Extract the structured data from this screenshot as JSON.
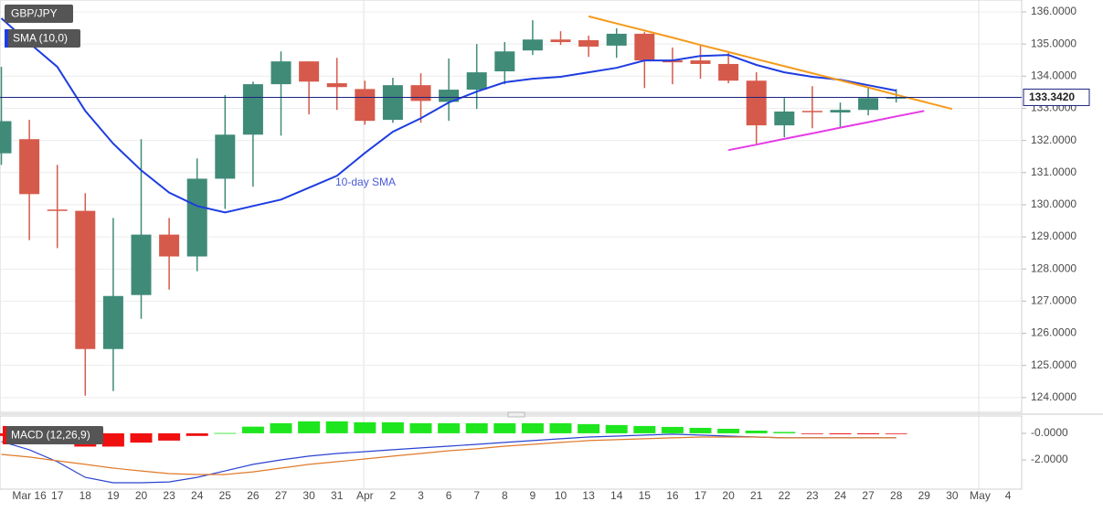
{
  "chart_data": [
    {
      "type": "candlestick",
      "title": "GBP/JPY",
      "categories": [
        null,
        "Mar 16",
        "17",
        "18",
        "19",
        "20",
        "23",
        "24",
        "25",
        "26",
        "27",
        "30",
        "31",
        "Apr",
        "2",
        "3",
        "6",
        "7",
        "8",
        "9",
        "10",
        "13",
        "14",
        "15",
        "16",
        "17",
        "20",
        "21",
        "22",
        "23",
        "24",
        "27",
        "28",
        "29",
        "30",
        "May",
        "4"
      ],
      "open": [
        131.6,
        132.04,
        129.85,
        129.81,
        125.51,
        127.19,
        129.07,
        128.39,
        130.81,
        132.18,
        133.75,
        134.46,
        133.78,
        133.6,
        132.64,
        133.72,
        133.2,
        133.58,
        134.15,
        134.8,
        135.14,
        135.12,
        134.95,
        135.32,
        134.49,
        134.49,
        134.38,
        133.86,
        132.47,
        132.92,
        132.87,
        132.95,
        133.32,
        null,
        null,
        null,
        null
      ],
      "high": [
        134.29,
        132.64,
        131.24,
        130.36,
        129.59,
        132.04,
        129.59,
        131.44,
        133.41,
        133.83,
        134.77,
        134.46,
        134.57,
        133.86,
        133.95,
        134.09,
        134.55,
        135.0,
        135.06,
        135.74,
        135.4,
        135.26,
        135.49,
        135.37,
        134.89,
        134.97,
        134.72,
        134.12,
        133.32,
        133.69,
        133.18,
        133.63,
        133.6,
        null,
        null,
        null,
        null
      ],
      "low": [
        131.24,
        128.9,
        128.65,
        124.06,
        124.2,
        126.45,
        127.36,
        127.93,
        129.87,
        130.56,
        132.15,
        132.81,
        132.95,
        132.49,
        132.55,
        132.55,
        132.61,
        132.98,
        133.75,
        134.66,
        134.97,
        134.6,
        134.57,
        133.63,
        133.75,
        133.92,
        133.78,
        131.9,
        132.1,
        132.38,
        132.38,
        132.78,
        133.18,
        null,
        null,
        null,
        null
      ],
      "close": [
        132.6,
        130.33,
        129.83,
        125.51,
        127.16,
        129.07,
        128.39,
        130.81,
        132.18,
        133.75,
        134.46,
        133.83,
        133.66,
        132.61,
        133.72,
        133.23,
        133.58,
        134.12,
        134.77,
        135.14,
        135.06,
        134.92,
        135.32,
        134.49,
        134.43,
        134.38,
        133.86,
        132.47,
        132.9,
        132.88,
        132.95,
        133.32,
        133.342,
        null,
        null,
        null,
        null
      ],
      "up_color": "#3f8b78",
      "down_color": "#d65a4b",
      "series": [
        {
          "name": "SMA (10,0)",
          "color": "#1e3de0",
          "values": [
            135.8,
            135.03,
            134.29,
            132.92,
            131.9,
            131.07,
            130.38,
            129.96,
            129.76,
            129.96,
            130.16,
            130.53,
            130.9,
            131.61,
            132.27,
            132.69,
            133.18,
            133.52,
            133.81,
            133.92,
            133.98,
            134.12,
            134.26,
            134.49,
            134.49,
            134.63,
            134.66,
            134.35,
            134.12,
            133.98,
            133.89,
            133.72,
            133.55,
            null,
            null,
            null,
            null
          ]
        },
        {
          "color": "#f59a1b",
          "values": [
            null,
            null,
            null,
            null,
            null,
            null,
            null,
            null,
            null,
            null,
            null,
            null,
            null,
            null,
            null,
            null,
            null,
            null,
            null,
            null,
            null,
            135.86,
            135.64,
            135.42,
            135.2,
            134.97,
            134.75,
            134.53,
            134.31,
            134.09,
            133.87,
            133.65,
            133.42,
            133.2,
            132.98,
            null,
            null
          ]
        },
        {
          "color": "#e63be6",
          "values": [
            null,
            null,
            null,
            null,
            null,
            null,
            null,
            null,
            null,
            null,
            null,
            null,
            null,
            null,
            null,
            null,
            null,
            null,
            null,
            null,
            null,
            null,
            null,
            null,
            null,
            null,
            131.7,
            131.87,
            132.05,
            132.22,
            132.4,
            132.57,
            132.75,
            132.92,
            null,
            null,
            null
          ]
        }
      ],
      "annotation": "10-day SMA",
      "last_price": 133.342,
      "last_price_label": "133.3420",
      "last_price_color": "#1a237e",
      "ylim": [
        123.54,
        136.37
      ],
      "yticks": [
        {
          "value": 124,
          "label": "124.0000"
        },
        {
          "value": 125,
          "label": "125.0000"
        },
        {
          "value": 126,
          "label": "126.0000"
        },
        {
          "value": 127,
          "label": "127.0000"
        },
        {
          "value": 128,
          "label": "128.0000"
        },
        {
          "value": 129,
          "label": "129.0000"
        },
        {
          "value": 130,
          "label": "130.0000"
        },
        {
          "value": 131,
          "label": "131.0000"
        },
        {
          "value": 132,
          "label": "132.0000"
        },
        {
          "value": 133,
          "label": "133.0000"
        },
        {
          "value": 134,
          "label": "134.0000"
        },
        {
          "value": 135,
          "label": "135.0000"
        },
        {
          "value": 136,
          "label": "136.0000"
        }
      ],
      "grid": true
    },
    {
      "type": "macd",
      "title": "MACD (12,26,9)",
      "histogram": {
        "up_color": "#1ee61e",
        "down_color": "#f01010",
        "values": [
          -0.2,
          -0.5,
          -0.8,
          -1.0,
          -1.0,
          -0.7,
          -0.55,
          -0.2,
          0.02,
          0.5,
          0.76,
          0.9,
          0.9,
          0.83,
          0.83,
          0.76,
          0.76,
          0.76,
          0.76,
          0.76,
          0.76,
          0.69,
          0.62,
          0.55,
          0.48,
          0.41,
          0.34,
          0.2,
          0.1,
          -0.05,
          -0.07,
          -0.07,
          -0.05,
          null,
          null,
          null,
          null
        ]
      },
      "series": [
        {
          "color": "#2a44d0",
          "values": [
            -0.62,
            -1.24,
            -2.14,
            -3.31,
            -3.72,
            -3.72,
            -3.66,
            -3.31,
            -2.83,
            -2.34,
            -2.0,
            -1.72,
            -1.52,
            -1.38,
            -1.24,
            -1.1,
            -0.97,
            -0.83,
            -0.69,
            -0.55,
            -0.41,
            -0.28,
            -0.21,
            -0.14,
            -0.07,
            -0.14,
            -0.21,
            -0.28,
            -0.34,
            -0.34,
            -0.34,
            -0.34,
            -0.34,
            null,
            null,
            null,
            null
          ]
        },
        {
          "color": "#e07a2a",
          "values": [
            -1.59,
            -1.79,
            -2.07,
            -2.34,
            -2.62,
            -2.83,
            -3.03,
            -3.1,
            -3.1,
            -2.9,
            -2.62,
            -2.34,
            -2.14,
            -1.93,
            -1.72,
            -1.52,
            -1.31,
            -1.17,
            -0.97,
            -0.83,
            -0.69,
            -0.55,
            -0.48,
            -0.41,
            -0.34,
            -0.28,
            -0.28,
            -0.28,
            -0.34,
            -0.34,
            -0.34,
            -0.34,
            -0.34,
            null,
            null,
            null,
            null
          ]
        }
      ],
      "ylim": [
        -4.2,
        1.3
      ],
      "yticks": [
        {
          "value": 0,
          "label": "-0.0000"
        },
        {
          "value": -2,
          "label": "-2.0000"
        }
      ]
    }
  ]
}
